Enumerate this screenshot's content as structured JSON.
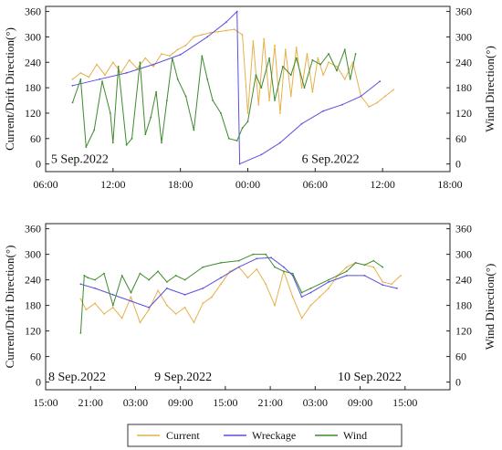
{
  "colors": {
    "current": "#E6B04A",
    "wreckage": "#5A4FE0",
    "wind": "#3E8A2E"
  },
  "legend": [
    "Current",
    "Wreckage",
    "Wind"
  ],
  "chart_data": [
    {
      "type": "line",
      "xlabel": "",
      "ylabel": "Current/Drift Direction(°)",
      "y2label": "Wind Direction(°)",
      "ylim": [
        -18,
        372
      ],
      "yticks": [
        0,
        60,
        120,
        180,
        240,
        300,
        360
      ],
      "y2ticks": [
        0,
        60,
        120,
        180,
        240,
        300,
        360
      ],
      "xlim": [
        5.25,
        6.75
      ],
      "xticks": [
        5.25,
        5.5,
        5.75,
        6.0,
        6.25,
        6.5,
        6.75
      ],
      "xticklabels": [
        "06:00",
        "12:00",
        "18:00",
        "00:00",
        "06:00",
        "12:00",
        "18:00"
      ],
      "annotations": [
        {
          "text": "5 Sep.2022",
          "x": 5.27,
          "y": 3
        },
        {
          "text": "6 Sep.2022",
          "x": 6.2,
          "y": 3
        }
      ],
      "series": [
        {
          "name": "Current",
          "key": "current",
          "x": [
            5.35,
            5.38,
            5.41,
            5.44,
            5.47,
            5.5,
            5.53,
            5.56,
            5.59,
            5.62,
            5.65,
            5.68,
            5.71,
            5.74,
            5.77,
            5.8,
            5.83,
            5.86,
            5.89,
            5.92,
            5.95,
            5.98,
            6.0,
            6.02,
            6.04,
            6.06,
            6.08,
            6.1,
            6.12,
            6.14,
            6.16,
            6.18,
            6.2,
            6.22,
            6.24,
            6.26,
            6.28,
            6.3,
            6.33,
            6.36,
            6.39,
            6.42,
            6.45,
            6.48,
            6.51,
            6.54
          ],
          "y": [
            200,
            215,
            205,
            235,
            210,
            240,
            215,
            245,
            225,
            250,
            230,
            260,
            255,
            270,
            280,
            300,
            305,
            310,
            312,
            315,
            318,
            305,
            120,
            290,
            140,
            295,
            150,
            280,
            120,
            270,
            160,
            275,
            180,
            260,
            170,
            250,
            210,
            240,
            230,
            200,
            240,
            160,
            135,
            145,
            160,
            175
          ]
        },
        {
          "name": "Wreckage",
          "key": "wreckage",
          "x": [
            5.35,
            5.45,
            5.55,
            5.65,
            5.75,
            5.85,
            5.92,
            5.96,
            5.97,
            6.05,
            6.12,
            6.2,
            6.28,
            6.35,
            6.42,
            6.49
          ],
          "y": [
            185,
            200,
            215,
            235,
            258,
            300,
            335,
            360,
            0,
            22,
            50,
            95,
            125,
            140,
            160,
            195
          ]
        },
        {
          "name": "Wind",
          "key": "wind",
          "x": [
            5.35,
            5.38,
            5.4,
            5.43,
            5.46,
            5.49,
            5.5,
            5.52,
            5.55,
            5.57,
            5.6,
            5.62,
            5.64,
            5.66,
            5.68,
            5.7,
            5.72,
            5.74,
            5.77,
            5.8,
            5.83,
            5.85,
            5.87,
            5.9,
            5.93,
            5.96,
            5.98,
            6.0,
            6.03,
            6.05,
            6.08,
            6.1,
            6.13,
            6.16,
            6.18,
            6.21,
            6.24,
            6.27,
            6.3,
            6.33,
            6.36,
            6.38,
            6.4
          ],
          "y": [
            145,
            200,
            40,
            80,
            195,
            120,
            50,
            230,
            45,
            60,
            240,
            70,
            110,
            170,
            50,
            150,
            250,
            200,
            160,
            80,
            255,
            200,
            150,
            120,
            60,
            55,
            85,
            100,
            210,
            180,
            250,
            150,
            230,
            210,
            250,
            180,
            245,
            235,
            260,
            220,
            270,
            200,
            260
          ]
        }
      ]
    },
    {
      "type": "line",
      "xlabel": "",
      "ylabel": "Current/Drift Direction(°)",
      "y2label": "Wind Direction(°)",
      "ylim": [
        -18,
        372
      ],
      "yticks": [
        0,
        60,
        120,
        180,
        240,
        300,
        360
      ],
      "y2ticks": [
        0,
        60,
        120,
        180,
        240,
        300,
        360
      ],
      "xlim": [
        8.625,
        10.875
      ],
      "xticks": [
        8.625,
        8.875,
        9.125,
        9.375,
        9.625,
        9.875,
        10.125,
        10.375,
        10.625,
        10.875
      ],
      "xticklabels": [
        "15:00",
        "21:00",
        "03:00",
        "09:00",
        "15:00",
        "21:00",
        "03:00",
        "09:00",
        "15:00",
        ""
      ],
      "annotations": [
        {
          "text": "8 Sep.2022",
          "x": 8.64,
          "y": 3
        },
        {
          "text": "9 Sep.2022",
          "x": 9.23,
          "y": 3
        },
        {
          "text": "10 Sep.2022",
          "x": 10.25,
          "y": 3
        }
      ],
      "series": [
        {
          "name": "Current",
          "key": "current",
          "x": [
            8.82,
            8.85,
            8.9,
            8.95,
            9.0,
            9.05,
            9.1,
            9.15,
            9.2,
            9.25,
            9.3,
            9.35,
            9.4,
            9.45,
            9.5,
            9.55,
            9.6,
            9.65,
            9.7,
            9.75,
            9.8,
            9.85,
            9.9,
            9.95,
            10.0,
            10.05,
            10.1,
            10.15,
            10.2,
            10.25,
            10.3,
            10.35,
            10.4,
            10.45,
            10.5,
            10.55,
            10.6
          ],
          "y": [
            195,
            170,
            185,
            160,
            175,
            150,
            200,
            140,
            170,
            215,
            180,
            160,
            175,
            140,
            185,
            200,
            230,
            260,
            270,
            245,
            265,
            230,
            180,
            260,
            200,
            150,
            180,
            200,
            220,
            250,
            270,
            280,
            275,
            270,
            235,
            230,
            250
          ]
        },
        {
          "name": "Wreckage",
          "key": "wreckage",
          "x": [
            8.82,
            8.9,
            9.0,
            9.1,
            9.2,
            9.3,
            9.4,
            9.5,
            9.6,
            9.7,
            9.8,
            9.88,
            9.95,
            10.0,
            10.05,
            10.1,
            10.2,
            10.3,
            10.4,
            10.5,
            10.58
          ],
          "y": [
            230,
            220,
            205,
            190,
            175,
            220,
            205,
            220,
            245,
            270,
            290,
            292,
            270,
            250,
            200,
            210,
            235,
            250,
            250,
            228,
            220
          ]
        },
        {
          "name": "Wind",
          "key": "wind",
          "x": [
            8.82,
            8.84,
            8.86,
            8.9,
            8.95,
            9.0,
            9.05,
            9.1,
            9.15,
            9.2,
            9.25,
            9.3,
            9.35,
            9.4,
            9.5,
            9.6,
            9.7,
            9.78,
            9.85,
            9.9,
            9.95,
            10.0,
            10.05,
            10.1,
            10.2,
            10.3,
            10.35,
            10.4,
            10.45,
            10.5
          ],
          "y": [
            115,
            250,
            245,
            240,
            255,
            180,
            250,
            210,
            255,
            240,
            260,
            235,
            250,
            240,
            270,
            280,
            285,
            300,
            300,
            270,
            260,
            255,
            210,
            220,
            240,
            260,
            280,
            275,
            285,
            270
          ]
        }
      ]
    }
  ]
}
